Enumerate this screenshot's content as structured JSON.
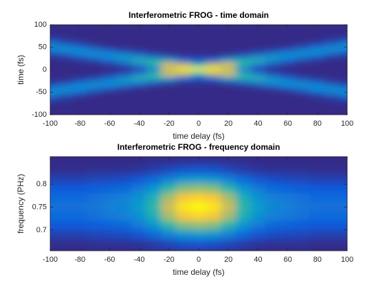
{
  "chart_data": [
    {
      "type": "heatmap",
      "title": "Interferometric FROG - time domain",
      "xlabel": "time delay (fs)",
      "ylabel": "time (fs)",
      "xlim": [
        -100,
        100
      ],
      "ylim": [
        -100,
        100
      ],
      "xticks": [
        -100,
        -80,
        -60,
        -40,
        -20,
        0,
        20,
        40,
        60,
        80,
        100
      ],
      "yticks": [
        -100,
        -50,
        0,
        50,
        100
      ],
      "colormap": [
        "#352a87",
        "#0f5cdd",
        "#1481d6",
        "#06a4ca",
        "#2eb7a4",
        "#87bf77",
        "#d1bb59",
        "#fec832",
        "#f9fb0e"
      ],
      "x": [
        -100,
        -90,
        -80,
        -70,
        -60,
        -50,
        -40,
        -30,
        -20,
        -10,
        0,
        10,
        20,
        30,
        40,
        50,
        60,
        70,
        80,
        90,
        100
      ],
      "y": [
        100,
        90,
        80,
        70,
        60,
        50,
        40,
        30,
        20,
        10,
        0,
        -10,
        -20,
        -30,
        -40,
        -50,
        -60,
        -70,
        -80,
        -90,
        -100
      ],
      "z": [
        [
          0,
          0,
          0,
          0,
          0,
          0,
          0,
          0,
          0,
          0,
          0,
          0,
          0,
          0,
          0,
          0,
          0,
          0,
          0,
          0,
          0
        ],
        [
          0,
          0,
          0,
          0,
          0,
          0,
          0,
          0,
          0,
          0,
          0,
          0,
          0,
          0,
          0,
          0,
          0,
          0,
          0,
          0,
          0
        ],
        [
          0,
          0,
          0,
          0,
          0,
          0,
          0,
          0,
          0,
          0,
          0,
          0,
          0,
          0,
          0,
          0,
          0,
          0,
          0,
          0,
          0
        ],
        [
          0.02,
          0.02,
          0,
          0,
          0,
          0,
          0,
          0,
          0,
          0,
          0,
          0,
          0,
          0,
          0,
          0,
          0,
          0,
          0,
          0.02,
          0.02
        ],
        [
          0.16,
          0.06,
          0.02,
          0,
          0,
          0,
          0,
          0,
          0,
          0,
          0,
          0,
          0,
          0,
          0,
          0,
          0,
          0,
          0.02,
          0.06,
          0.16
        ],
        [
          0.35,
          0.28,
          0.16,
          0.06,
          0,
          0,
          0,
          0,
          0,
          0,
          0,
          0,
          0,
          0,
          0,
          0,
          0,
          0.06,
          0.16,
          0.28,
          0.35
        ],
        [
          0.16,
          0.28,
          0.35,
          0.28,
          0.16,
          0.07,
          0.03,
          0,
          0,
          0,
          0,
          0,
          0,
          0,
          0.03,
          0.07,
          0.16,
          0.28,
          0.35,
          0.28,
          0.16
        ],
        [
          0.02,
          0.06,
          0.16,
          0.28,
          0.35,
          0.32,
          0.22,
          0.1,
          0.04,
          0.02,
          0.02,
          0.02,
          0.04,
          0.1,
          0.22,
          0.32,
          0.35,
          0.28,
          0.16,
          0.06,
          0.02
        ],
        [
          0,
          0,
          0.02,
          0.06,
          0.16,
          0.32,
          0.5,
          0.48,
          0.36,
          0.15,
          0.1,
          0.15,
          0.36,
          0.48,
          0.5,
          0.32,
          0.16,
          0.06,
          0.02,
          0,
          0
        ],
        [
          0,
          0,
          0,
          0,
          0.02,
          0.07,
          0.22,
          0.48,
          0.8,
          0.72,
          0.45,
          0.72,
          0.8,
          0.48,
          0.22,
          0.07,
          0.02,
          0,
          0,
          0,
          0
        ],
        [
          0,
          0,
          0,
          0,
          0,
          0.01,
          0.05,
          0.2,
          0.7,
          0.95,
          1,
          0.95,
          0.7,
          0.2,
          0.05,
          0.01,
          0,
          0,
          0,
          0,
          0
        ],
        [
          0,
          0,
          0,
          0,
          0.02,
          0.07,
          0.22,
          0.48,
          0.8,
          0.72,
          0.45,
          0.72,
          0.8,
          0.48,
          0.22,
          0.07,
          0.02,
          0,
          0,
          0,
          0
        ],
        [
          0,
          0,
          0.02,
          0.06,
          0.16,
          0.32,
          0.5,
          0.48,
          0.36,
          0.15,
          0.1,
          0.15,
          0.36,
          0.48,
          0.5,
          0.32,
          0.16,
          0.06,
          0.02,
          0,
          0
        ],
        [
          0.02,
          0.06,
          0.16,
          0.28,
          0.35,
          0.32,
          0.22,
          0.1,
          0.04,
          0.02,
          0.02,
          0.02,
          0.04,
          0.1,
          0.22,
          0.32,
          0.35,
          0.28,
          0.16,
          0.06,
          0.02
        ],
        [
          0.16,
          0.28,
          0.35,
          0.28,
          0.16,
          0.07,
          0.03,
          0,
          0,
          0,
          0,
          0,
          0,
          0,
          0.03,
          0.07,
          0.16,
          0.28,
          0.35,
          0.28,
          0.16
        ],
        [
          0.35,
          0.28,
          0.16,
          0.06,
          0,
          0,
          0,
          0,
          0,
          0,
          0,
          0,
          0,
          0,
          0,
          0,
          0,
          0.06,
          0.16,
          0.28,
          0.35
        ],
        [
          0.16,
          0.06,
          0.02,
          0,
          0,
          0,
          0,
          0,
          0,
          0,
          0,
          0,
          0,
          0,
          0,
          0,
          0,
          0,
          0.02,
          0.06,
          0.16
        ],
        [
          0.02,
          0.02,
          0,
          0,
          0,
          0,
          0,
          0,
          0,
          0,
          0,
          0,
          0,
          0,
          0,
          0,
          0,
          0,
          0,
          0.02,
          0.02
        ],
        [
          0,
          0,
          0,
          0,
          0,
          0,
          0,
          0,
          0,
          0,
          0,
          0,
          0,
          0,
          0,
          0,
          0,
          0,
          0,
          0,
          0
        ],
        [
          0,
          0,
          0,
          0,
          0,
          0,
          0,
          0,
          0,
          0,
          0,
          0,
          0,
          0,
          0,
          0,
          0,
          0,
          0,
          0,
          0
        ],
        [
          0,
          0,
          0,
          0,
          0,
          0,
          0,
          0,
          0,
          0,
          0,
          0,
          0,
          0,
          0,
          0,
          0,
          0,
          0,
          0,
          0
        ]
      ]
    },
    {
      "type": "heatmap",
      "title": "Interferometric FROG - frequency domain",
      "xlabel": "time delay (fs)",
      "ylabel": "frequency (PHz)",
      "xlim": [
        -100,
        100
      ],
      "ylim": [
        0.655,
        0.86
      ],
      "xticks": [
        -100,
        -80,
        -60,
        -40,
        -20,
        0,
        20,
        40,
        60,
        80,
        100
      ],
      "yticks": [
        0.7,
        0.75,
        0.8
      ],
      "colormap": [
        "#352a87",
        "#0f5cdd",
        "#1481d6",
        "#06a4ca",
        "#2eb7a4",
        "#87bf77",
        "#d1bb59",
        "#fec832",
        "#f9fb0e"
      ],
      "x": [
        -100,
        -90,
        -80,
        -70,
        -60,
        -50,
        -40,
        -30,
        -20,
        -10,
        0,
        10,
        20,
        30,
        40,
        50,
        60,
        70,
        80,
        90,
        100
      ],
      "y": [
        0.85,
        0.83,
        0.81,
        0.79,
        0.77,
        0.75,
        0.73,
        0.71,
        0.69,
        0.67,
        0.65
      ],
      "z": [
        [
          0.01,
          0.01,
          0.01,
          0.01,
          0.01,
          0.01,
          0.01,
          0.02,
          0.02,
          0.03,
          0.03,
          0.03,
          0.02,
          0.02,
          0.01,
          0.01,
          0.01,
          0.01,
          0.01,
          0.01,
          0.01
        ],
        [
          0.02,
          0.02,
          0.02,
          0.03,
          0.03,
          0.03,
          0.04,
          0.06,
          0.09,
          0.11,
          0.12,
          0.11,
          0.09,
          0.06,
          0.04,
          0.03,
          0.03,
          0.03,
          0.02,
          0.02,
          0.02
        ],
        [
          0.07,
          0.07,
          0.07,
          0.08,
          0.09,
          0.1,
          0.12,
          0.18,
          0.26,
          0.33,
          0.35,
          0.33,
          0.26,
          0.18,
          0.12,
          0.1,
          0.09,
          0.08,
          0.07,
          0.07,
          0.07
        ],
        [
          0.13,
          0.13,
          0.13,
          0.14,
          0.16,
          0.18,
          0.23,
          0.33,
          0.49,
          0.62,
          0.65,
          0.62,
          0.49,
          0.33,
          0.23,
          0.18,
          0.16,
          0.14,
          0.13,
          0.13,
          0.13
        ],
        [
          0.18,
          0.18,
          0.18,
          0.2,
          0.23,
          0.25,
          0.32,
          0.45,
          0.68,
          0.86,
          0.9,
          0.86,
          0.68,
          0.45,
          0.32,
          0.25,
          0.23,
          0.2,
          0.18,
          0.18,
          0.18
        ],
        [
          0.2,
          0.2,
          0.2,
          0.22,
          0.25,
          0.28,
          0.35,
          0.5,
          0.75,
          0.95,
          1,
          0.95,
          0.75,
          0.5,
          0.35,
          0.28,
          0.25,
          0.22,
          0.2,
          0.2,
          0.2
        ],
        [
          0.18,
          0.18,
          0.18,
          0.2,
          0.23,
          0.25,
          0.32,
          0.45,
          0.68,
          0.86,
          0.9,
          0.86,
          0.68,
          0.45,
          0.32,
          0.25,
          0.23,
          0.2,
          0.18,
          0.18,
          0.18
        ],
        [
          0.13,
          0.13,
          0.13,
          0.14,
          0.16,
          0.18,
          0.23,
          0.33,
          0.49,
          0.62,
          0.65,
          0.62,
          0.49,
          0.33,
          0.23,
          0.18,
          0.16,
          0.14,
          0.13,
          0.13,
          0.13
        ],
        [
          0.07,
          0.07,
          0.07,
          0.08,
          0.09,
          0.1,
          0.12,
          0.18,
          0.26,
          0.33,
          0.35,
          0.33,
          0.26,
          0.18,
          0.12,
          0.1,
          0.09,
          0.08,
          0.07,
          0.07,
          0.07
        ],
        [
          0.02,
          0.02,
          0.02,
          0.03,
          0.03,
          0.03,
          0.04,
          0.06,
          0.09,
          0.11,
          0.12,
          0.11,
          0.09,
          0.06,
          0.04,
          0.03,
          0.03,
          0.03,
          0.02,
          0.02,
          0.02
        ],
        [
          0.01,
          0.01,
          0.01,
          0.01,
          0.01,
          0.01,
          0.01,
          0.02,
          0.02,
          0.03,
          0.03,
          0.03,
          0.02,
          0.02,
          0.01,
          0.01,
          0.01,
          0.01,
          0.01,
          0.01,
          0.01
        ]
      ]
    }
  ]
}
